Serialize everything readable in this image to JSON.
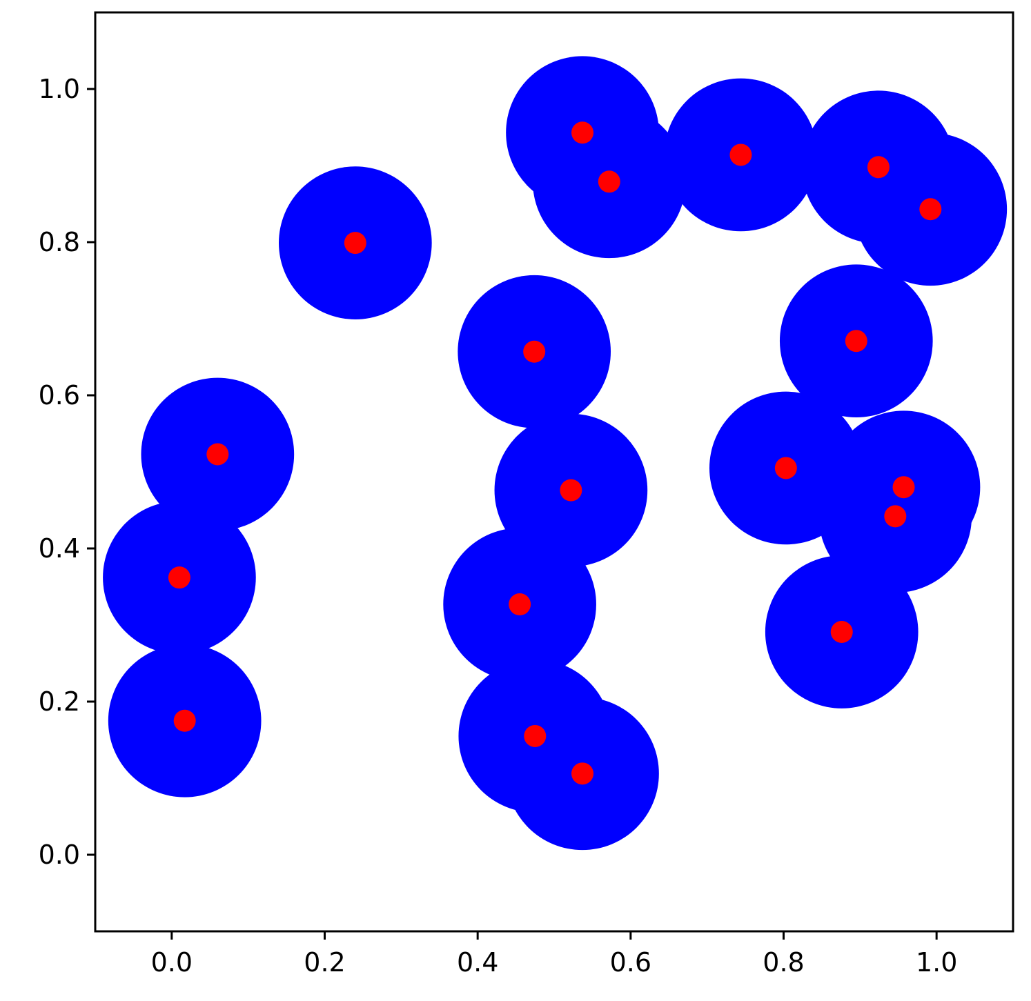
{
  "chart_data": {
    "type": "scatter",
    "title": "",
    "xlabel": "",
    "ylabel": "",
    "xlim": [
      -0.1,
      1.1
    ],
    "ylim": [
      -0.1,
      1.1
    ],
    "grid": false,
    "legend": "none",
    "xticks": [
      "0.0",
      "0.2",
      "0.4",
      "0.6",
      "0.8",
      "1.0"
    ],
    "yticks": [
      "0.0",
      "0.2",
      "0.4",
      "0.6",
      "0.8",
      "1.0"
    ],
    "xtick_values": [
      0.0,
      0.2,
      0.4,
      0.6,
      0.8,
      1.0
    ],
    "ytick_values": [
      0.0,
      0.2,
      0.4,
      0.6,
      0.8,
      1.0
    ],
    "disk_radius": 0.1,
    "colors": {
      "disk": "#0000ff",
      "point": "#ff0000",
      "axes": "#000000",
      "background": "#ffffff"
    },
    "points": [
      {
        "x": 0.017,
        "y": 0.175
      },
      {
        "x": 0.01,
        "y": 0.362
      },
      {
        "x": 0.06,
        "y": 0.523
      },
      {
        "x": 0.24,
        "y": 0.799
      },
      {
        "x": 0.474,
        "y": 0.657
      },
      {
        "x": 0.522,
        "y": 0.476
      },
      {
        "x": 0.455,
        "y": 0.327
      },
      {
        "x": 0.475,
        "y": 0.155
      },
      {
        "x": 0.537,
        "y": 0.106
      },
      {
        "x": 0.537,
        "y": 0.943
      },
      {
        "x": 0.572,
        "y": 0.879
      },
      {
        "x": 0.744,
        "y": 0.914
      },
      {
        "x": 0.924,
        "y": 0.898
      },
      {
        "x": 0.992,
        "y": 0.843
      },
      {
        "x": 0.895,
        "y": 0.671
      },
      {
        "x": 0.803,
        "y": 0.505
      },
      {
        "x": 0.957,
        "y": 0.48
      },
      {
        "x": 0.946,
        "y": 0.442
      },
      {
        "x": 0.876,
        "y": 0.291
      }
    ]
  }
}
